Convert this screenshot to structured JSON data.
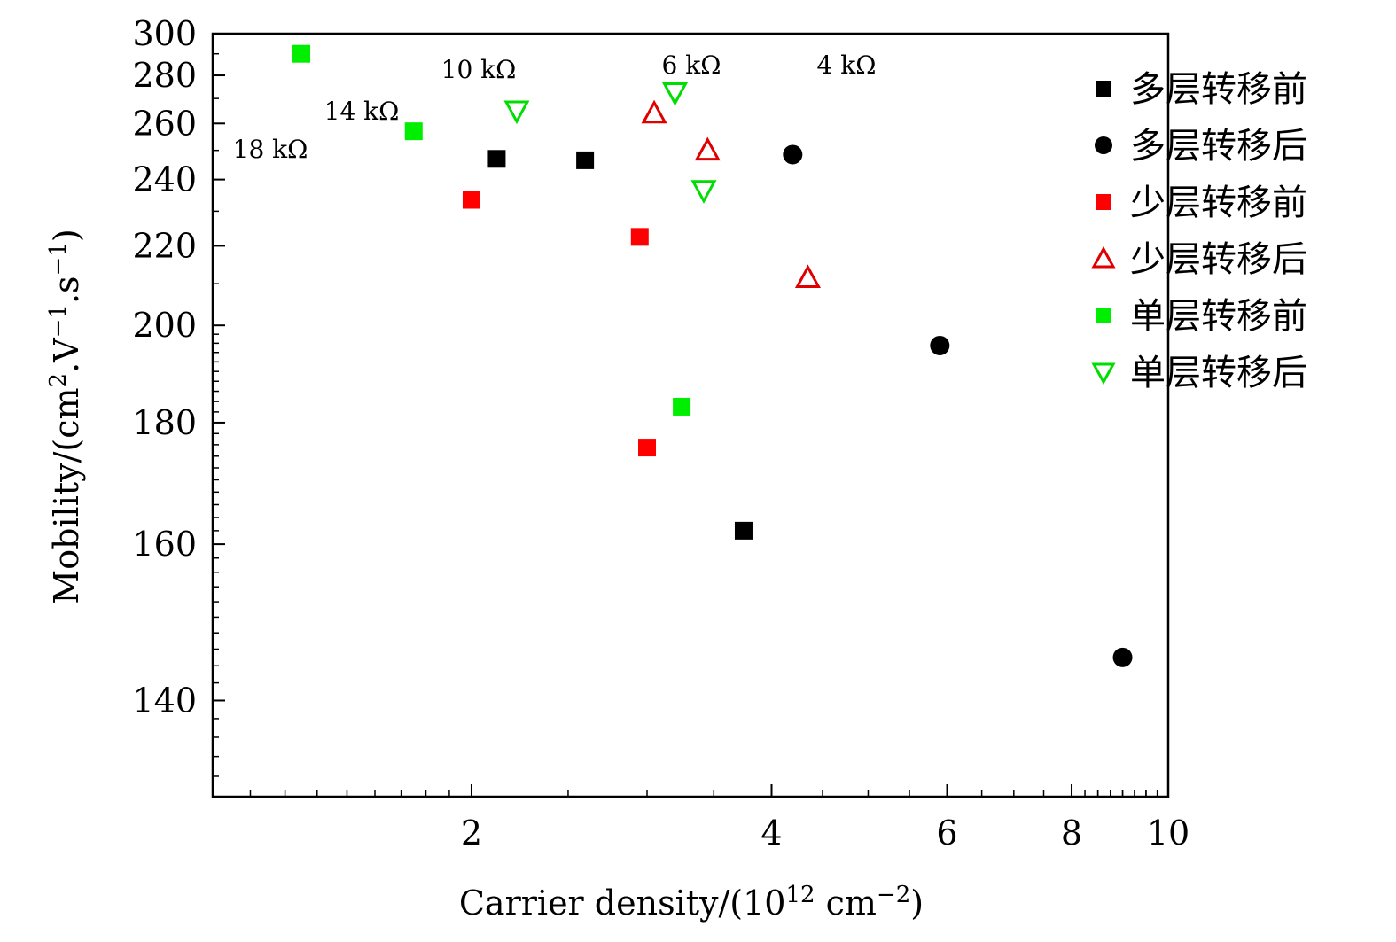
{
  "chart_data": {
    "type": "scatter",
    "xlabel": "Carrier density/(10",
    "xlabel_sup": "12",
    "xlabel_mid": " cm",
    "xlabel_sup2": "−2",
    "xlabel_end": ")",
    "ylabel_main": "Mobility/(cm",
    "ylabel_sup1": "2",
    "ylabel_mid": ".V",
    "ylabel_sup2": "−1",
    "ylabel_mid2": ".s",
    "ylabel_sup3": "−1",
    "ylabel_end": ")",
    "x_scale": "log",
    "y_scale": "reciprocal",
    "xlim": [
      1.1,
      10
    ],
    "ylim": [
      130,
      300
    ],
    "x_ticks": [
      2,
      4,
      6,
      8,
      10
    ],
    "x_tick_labels": [
      "2",
      "4",
      "6",
      "8",
      "10"
    ],
    "y_ticks": [
      140,
      160,
      180,
      200,
      220,
      240,
      260,
      280,
      300
    ],
    "y_tick_labels": [
      "140",
      "160",
      "180",
      "200",
      "220",
      "240",
      "260",
      "280",
      "300"
    ],
    "iso_resistance_lines": [
      {
        "label": "18 kΩ",
        "kohm": 18
      },
      {
        "label": "14 kΩ",
        "kohm": 14
      },
      {
        "label": "10 kΩ",
        "kohm": 10
      },
      {
        "label": "6 kΩ",
        "kohm": 6
      },
      {
        "label": "4 kΩ",
        "kohm": 4
      }
    ],
    "legend_position": "top-right",
    "series": [
      {
        "name": "多层转移前",
        "marker": "square",
        "filled": true,
        "color": "#000000",
        "points": [
          [
            2.12,
            247
          ],
          [
            2.6,
            246.5
          ],
          [
            3.75,
            162
          ]
        ]
      },
      {
        "name": "多层转移后",
        "marker": "circle",
        "filled": true,
        "color": "#000000",
        "points": [
          [
            4.2,
            248.5
          ],
          [
            5.9,
            195.5
          ],
          [
            9.0,
            145
          ]
        ]
      },
      {
        "name": "少层转移前",
        "marker": "square",
        "filled": true,
        "color": "#ff0000",
        "points": [
          [
            2.0,
            233.5
          ],
          [
            2.95,
            222.5
          ],
          [
            3.0,
            175.5
          ]
        ]
      },
      {
        "name": "少层转移后",
        "marker": "triangle-up",
        "filled": false,
        "color": "#e00000",
        "points": [
          [
            3.05,
            264
          ],
          [
            3.45,
            250
          ],
          [
            4.35,
            211.5
          ]
        ]
      },
      {
        "name": "单层转移前",
        "marker": "square",
        "filled": true,
        "color": "#00ee00",
        "points": [
          [
            1.35,
            290
          ],
          [
            1.75,
            257
          ],
          [
            3.25,
            183
          ]
        ]
      },
      {
        "name": "单层转移后",
        "marker": "triangle-down",
        "filled": false,
        "color": "#00dd00",
        "points": [
          [
            2.22,
            265
          ],
          [
            3.2,
            272.5
          ],
          [
            3.42,
            236.5
          ]
        ]
      }
    ]
  }
}
